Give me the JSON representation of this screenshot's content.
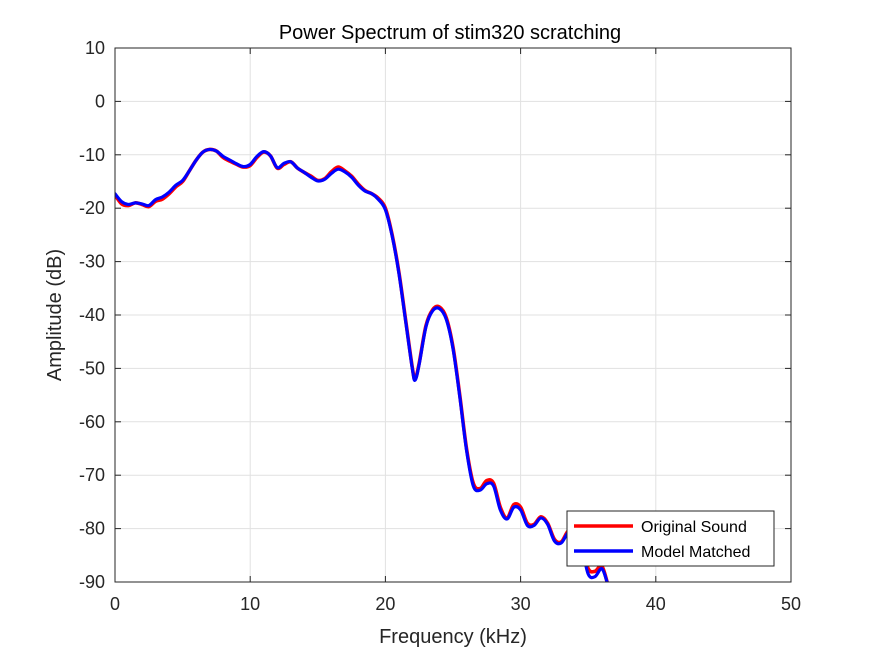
{
  "chart_data": {
    "type": "line",
    "title": "Power Spectrum of stim320 scratching",
    "xlabel": "Frequency (kHz)",
    "ylabel": "Amplitude (dB)",
    "xlim": [
      0,
      50
    ],
    "ylim": [
      -90,
      10
    ],
    "xticks": [
      0,
      10,
      20,
      30,
      40,
      50
    ],
    "yticks": [
      10,
      0,
      -10,
      -20,
      -30,
      -40,
      -50,
      -60,
      -70,
      -80,
      -90
    ],
    "grid": true,
    "legend_position": "bottom-right",
    "series": [
      {
        "name": "Original Sound",
        "color": "#ff0000",
        "x": [
          0,
          0.5,
          1,
          1.5,
          2,
          2.5,
          3,
          3.5,
          4,
          4.5,
          5,
          5.5,
          6,
          6.5,
          7,
          7.5,
          8,
          8.5,
          9,
          9.5,
          10,
          10.5,
          11,
          11.5,
          12,
          12.5,
          13,
          13.5,
          14,
          14.5,
          15,
          15.5,
          16,
          16.5,
          17,
          17.5,
          18,
          18.5,
          19,
          19.5,
          20,
          20.5,
          21,
          21.5,
          22,
          22.2,
          22.5,
          23,
          23.5,
          24,
          24.5,
          25,
          25.5,
          26,
          26.5,
          27,
          27.5,
          28,
          28.5,
          29,
          29.5,
          30,
          30.5,
          31,
          31.5,
          32,
          32.5,
          33,
          33.5,
          34,
          34.5,
          35,
          35.5,
          36,
          36.4
        ],
        "values": [
          -17.5,
          -19.2,
          -19.5,
          -19.0,
          -19.3,
          -19.7,
          -18.7,
          -18.3,
          -17.3,
          -16.0,
          -15.0,
          -13.0,
          -11.0,
          -9.5,
          -9.0,
          -9.3,
          -10.5,
          -11.2,
          -11.8,
          -12.3,
          -12.0,
          -10.5,
          -9.5,
          -10.2,
          -12.5,
          -11.8,
          -11.3,
          -12.5,
          -13.3,
          -14.0,
          -14.8,
          -14.5,
          -13.2,
          -12.3,
          -13.0,
          -14.0,
          -15.5,
          -16.7,
          -17.3,
          -18.2,
          -20.0,
          -25.0,
          -32.0,
          -41.0,
          -50.0,
          -52.0,
          -49.0,
          -42.0,
          -39.0,
          -38.5,
          -40.5,
          -46.0,
          -55.0,
          -65.0,
          -71.5,
          -72.5,
          -71.0,
          -71.5,
          -76.0,
          -78.0,
          -75.5,
          -76.0,
          -79.0,
          -79.2,
          -77.8,
          -79.0,
          -82.0,
          -82.5,
          -80.5,
          -80.0,
          -83.0,
          -87.5,
          -88.0,
          -87.0,
          -90.0
        ]
      },
      {
        "name": "Model Matched",
        "color": "#0000ff",
        "x": [
          0,
          0.5,
          1,
          1.5,
          2,
          2.5,
          3,
          3.5,
          4,
          4.5,
          5,
          5.5,
          6,
          6.5,
          7,
          7.5,
          8,
          8.5,
          9,
          9.5,
          10,
          10.5,
          11,
          11.5,
          12,
          12.5,
          13,
          13.5,
          14,
          14.5,
          15,
          15.5,
          16,
          16.5,
          17,
          17.5,
          18,
          18.5,
          19,
          19.5,
          20,
          20.5,
          21,
          21.5,
          22,
          22.2,
          22.5,
          23,
          23.5,
          24,
          24.5,
          25,
          25.5,
          26,
          26.5,
          27,
          27.5,
          28,
          28.5,
          29,
          29.5,
          30,
          30.5,
          31,
          31.5,
          32,
          32.5,
          33,
          33.5,
          34,
          34.5,
          35,
          35.5,
          36,
          36.4
        ],
        "values": [
          -17.3,
          -18.8,
          -19.3,
          -19.0,
          -19.2,
          -19.5,
          -18.4,
          -17.9,
          -17.0,
          -15.7,
          -14.8,
          -13.0,
          -11.0,
          -9.5,
          -9.0,
          -9.3,
          -10.3,
          -11.0,
          -11.7,
          -12.2,
          -11.8,
          -10.3,
          -9.4,
          -10.2,
          -12.4,
          -11.6,
          -11.3,
          -12.5,
          -13.3,
          -14.2,
          -14.9,
          -14.6,
          -13.5,
          -12.7,
          -13.2,
          -14.2,
          -15.7,
          -16.8,
          -17.3,
          -18.4,
          -20.3,
          -25.2,
          -32.2,
          -41.2,
          -50.2,
          -52.2,
          -49.2,
          -42.2,
          -39.2,
          -38.8,
          -40.8,
          -46.3,
          -55.3,
          -65.3,
          -72.0,
          -72.8,
          -71.6,
          -72.0,
          -76.5,
          -78.2,
          -76.0,
          -76.5,
          -79.4,
          -79.4,
          -78.0,
          -79.2,
          -82.3,
          -82.7,
          -80.8,
          -80.3,
          -83.2,
          -88.5,
          -89.0,
          -87.5,
          -90.0
        ]
      }
    ]
  }
}
